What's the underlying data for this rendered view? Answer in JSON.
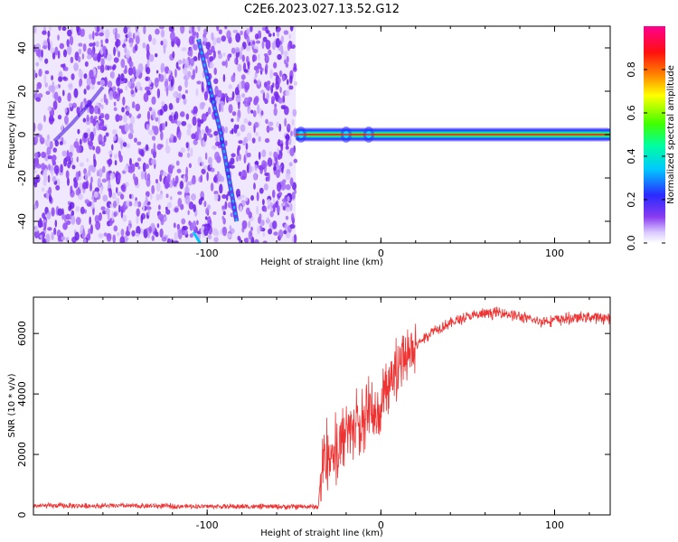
{
  "figure_title": "C2E6.2023.027.13.52.G12",
  "chart_data": [
    {
      "type": "heatmap",
      "title": "",
      "xlabel": "Height of straight line (km)",
      "ylabel": "Frequency (Hz)",
      "xlim": [
        -200,
        132
      ],
      "ylim": [
        -50,
        50
      ],
      "xticks": [
        -100,
        0,
        100
      ],
      "yticks": [
        -40,
        -20,
        0,
        20,
        40
      ],
      "colorbar": {
        "label": "Normalized spectral amplitude",
        "ticks": [
          0.0,
          0.2,
          0.4,
          0.6,
          0.8
        ],
        "range": [
          0,
          1
        ],
        "colormap": "rainbow (white-violet-blue-cyan-green-yellow-red-magenta)"
      },
      "regions": [
        {
          "name": "noise",
          "x_range": [
            -200,
            -49
          ],
          "freq_range": [
            -50,
            50
          ],
          "amplitude_range": [
            0.0,
            0.2
          ]
        },
        {
          "name": "carrier",
          "x_range": [
            -49,
            132
          ],
          "freq_center": 0,
          "freq_halfwidth": 2,
          "amplitude": 0.9
        }
      ],
      "features": [
        {
          "name": "diagonal streak",
          "x": [
            -105,
            -92,
            -83
          ],
          "y": [
            44,
            0,
            -40
          ],
          "amplitude": 0.3
        }
      ],
      "grid": false
    },
    {
      "type": "line",
      "title": "",
      "xlabel": "Height of straight line (km)",
      "ylabel": "SNR (10 * v/v)",
      "xlim": [
        -200,
        132
      ],
      "ylim": [
        0,
        7200
      ],
      "xticks": [
        -100,
        0,
        100
      ],
      "yticks": [
        0,
        2000,
        4000,
        6000
      ],
      "color": "#ee3333",
      "x": [
        -200,
        -150,
        -100,
        -50,
        -36,
        -34,
        -30,
        -25,
        -20,
        -15,
        -10,
        -5,
        0,
        5,
        10,
        20,
        30,
        40,
        50,
        60,
        70,
        80,
        90,
        100,
        110,
        120,
        132
      ],
      "y": [
        300,
        300,
        280,
        270,
        270,
        1800,
        2100,
        2300,
        2600,
        2900,
        3200,
        3500,
        3800,
        4400,
        4900,
        5600,
        6100,
        6350,
        6550,
        6650,
        6700,
        6550,
        6400,
        6450,
        6500,
        6550,
        6500
      ],
      "grid": false
    }
  ]
}
